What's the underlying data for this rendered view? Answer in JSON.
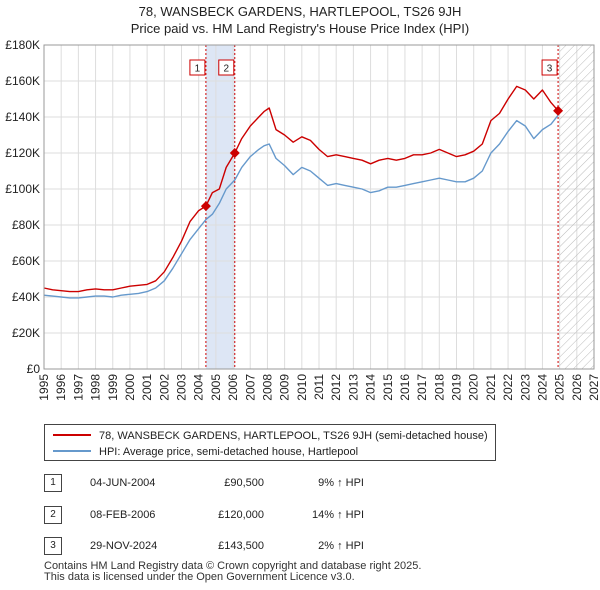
{
  "title_line1": "78, WANSBECK GARDENS, HARTLEPOOL, TS26 9JH",
  "title_line2": "Price paid vs. HM Land Registry's House Price Index (HPI)",
  "colors": {
    "price": "#cc0000",
    "hpi": "#6699cc",
    "marker": "#cc0000",
    "shade": "#dde6f5",
    "grid": "#dddddd"
  },
  "chart_data": {
    "type": "line",
    "title": "78, WANSBECK GARDENS, HARTLEPOOL, TS26 9JH — Price paid vs. HM Land Registry's House Price Index (HPI)",
    "xlabel": "",
    "ylabel": "",
    "xlim": [
      1995,
      2027
    ],
    "ylim": [
      0,
      180000
    ],
    "x_ticks": [
      1995,
      1996,
      1997,
      1998,
      1999,
      2000,
      2001,
      2002,
      2003,
      2004,
      2005,
      2006,
      2007,
      2008,
      2009,
      2010,
      2011,
      2012,
      2013,
      2014,
      2015,
      2016,
      2017,
      2018,
      2019,
      2020,
      2021,
      2022,
      2023,
      2024,
      2025,
      2026,
      2027
    ],
    "y_ticks": [
      0,
      20000,
      40000,
      60000,
      80000,
      100000,
      120000,
      140000,
      160000,
      180000
    ],
    "y_tick_labels": [
      "£0",
      "£20K",
      "£40K",
      "£60K",
      "£80K",
      "£100K",
      "£120K",
      "£140K",
      "£160K",
      "£180K"
    ],
    "grid": true,
    "forecast_start": 2025.0,
    "series": [
      {
        "name": "78, WANSBECK GARDENS, HARTLEPOOL, TS26 9JH (semi-detached house)",
        "color": "#cc0000",
        "x": [
          1995.0,
          1995.5,
          1996.0,
          1996.5,
          1997.0,
          1997.5,
          1998.0,
          1998.5,
          1999.0,
          1999.5,
          2000.0,
          2000.5,
          2001.0,
          2001.5,
          2002.0,
          2002.5,
          2003.0,
          2003.5,
          2004.0,
          2004.42,
          2004.8,
          2005.2,
          2005.6,
          2006.1,
          2006.5,
          2007.0,
          2007.5,
          2007.8,
          2008.1,
          2008.5,
          2009.0,
          2009.5,
          2010.0,
          2010.5,
          2011.0,
          2011.5,
          2012.0,
          2012.5,
          2013.0,
          2013.5,
          2014.0,
          2014.5,
          2015.0,
          2015.5,
          2016.0,
          2016.5,
          2017.0,
          2017.5,
          2018.0,
          2018.5,
          2019.0,
          2019.5,
          2020.0,
          2020.5,
          2021.0,
          2021.5,
          2022.0,
          2022.5,
          2023.0,
          2023.5,
          2024.0,
          2024.5,
          2024.91
        ],
        "y": [
          45000,
          44000,
          43500,
          43000,
          43000,
          44000,
          44500,
          44000,
          44000,
          45000,
          46000,
          46500,
          47000,
          49000,
          54000,
          62000,
          71000,
          82000,
          88000,
          90500,
          98000,
          100000,
          112000,
          120000,
          128000,
          135000,
          140000,
          143000,
          145000,
          133000,
          130000,
          126000,
          129000,
          127000,
          122000,
          118000,
          119000,
          118000,
          117000,
          116000,
          114000,
          116000,
          117000,
          116000,
          117000,
          119000,
          119000,
          120000,
          122000,
          120000,
          118000,
          119000,
          121000,
          125000,
          138000,
          142000,
          150000,
          157000,
          155000,
          150000,
          155000,
          148000,
          143500
        ]
      },
      {
        "name": "HPI: Average price, semi-detached house, Hartlepool",
        "color": "#6699cc",
        "x": [
          1995.0,
          1995.5,
          1996.0,
          1996.5,
          1997.0,
          1997.5,
          1998.0,
          1998.5,
          1999.0,
          1999.5,
          2000.0,
          2000.5,
          2001.0,
          2001.5,
          2002.0,
          2002.5,
          2003.0,
          2003.5,
          2004.0,
          2004.42,
          2004.8,
          2005.2,
          2005.6,
          2006.1,
          2006.5,
          2007.0,
          2007.5,
          2007.8,
          2008.1,
          2008.5,
          2009.0,
          2009.5,
          2010.0,
          2010.5,
          2011.0,
          2011.5,
          2012.0,
          2012.5,
          2013.0,
          2013.5,
          2014.0,
          2014.5,
          2015.0,
          2015.5,
          2016.0,
          2016.5,
          2017.0,
          2017.5,
          2018.0,
          2018.5,
          2019.0,
          2019.5,
          2020.0,
          2020.5,
          2021.0,
          2021.5,
          2022.0,
          2022.5,
          2023.0,
          2023.5,
          2024.0,
          2024.5,
          2024.91
        ],
        "y": [
          41000,
          40500,
          40000,
          39500,
          39500,
          40000,
          40500,
          40500,
          40000,
          41000,
          41500,
          42000,
          43000,
          45000,
          49000,
          56000,
          64000,
          72000,
          78000,
          83000,
          86000,
          92000,
          100000,
          105000,
          112000,
          118000,
          122000,
          124000,
          125000,
          117000,
          113000,
          108000,
          112000,
          110000,
          106000,
          102000,
          103000,
          102000,
          101000,
          100000,
          98000,
          99000,
          101000,
          101000,
          102000,
          103000,
          104000,
          105000,
          106000,
          105000,
          104000,
          104000,
          106000,
          110000,
          120000,
          125000,
          132000,
          138000,
          135000,
          128000,
          133000,
          136000,
          141000
        ]
      }
    ],
    "annotations": [
      {
        "label": "1",
        "x": 2004.42,
        "y": 90500
      },
      {
        "label": "2",
        "x": 2006.1,
        "y": 120000
      },
      {
        "label": "3",
        "x": 2024.91,
        "y": 143500
      }
    ],
    "shaded_span": [
      2004.42,
      2006.1
    ]
  },
  "legend": [
    {
      "label": "78, WANSBECK GARDENS, HARTLEPOOL, TS26 9JH (semi-detached house)",
      "color": "#cc0000"
    },
    {
      "label": "HPI: Average price, semi-detached house, Hartlepool",
      "color": "#6699cc"
    }
  ],
  "sales": [
    {
      "num": "1",
      "date": "04-JUN-2004",
      "price": "£90,500",
      "hpi": "9% ↑ HPI"
    },
    {
      "num": "2",
      "date": "08-FEB-2006",
      "price": "£120,000",
      "hpi": "14% ↑ HPI"
    },
    {
      "num": "3",
      "date": "29-NOV-2024",
      "price": "£143,500",
      "hpi": "2% ↑ HPI"
    }
  ],
  "footer_line1": "Contains HM Land Registry data © Crown copyright and database right 2025.",
  "footer_line2": "This data is licensed under the Open Government Licence v3.0."
}
